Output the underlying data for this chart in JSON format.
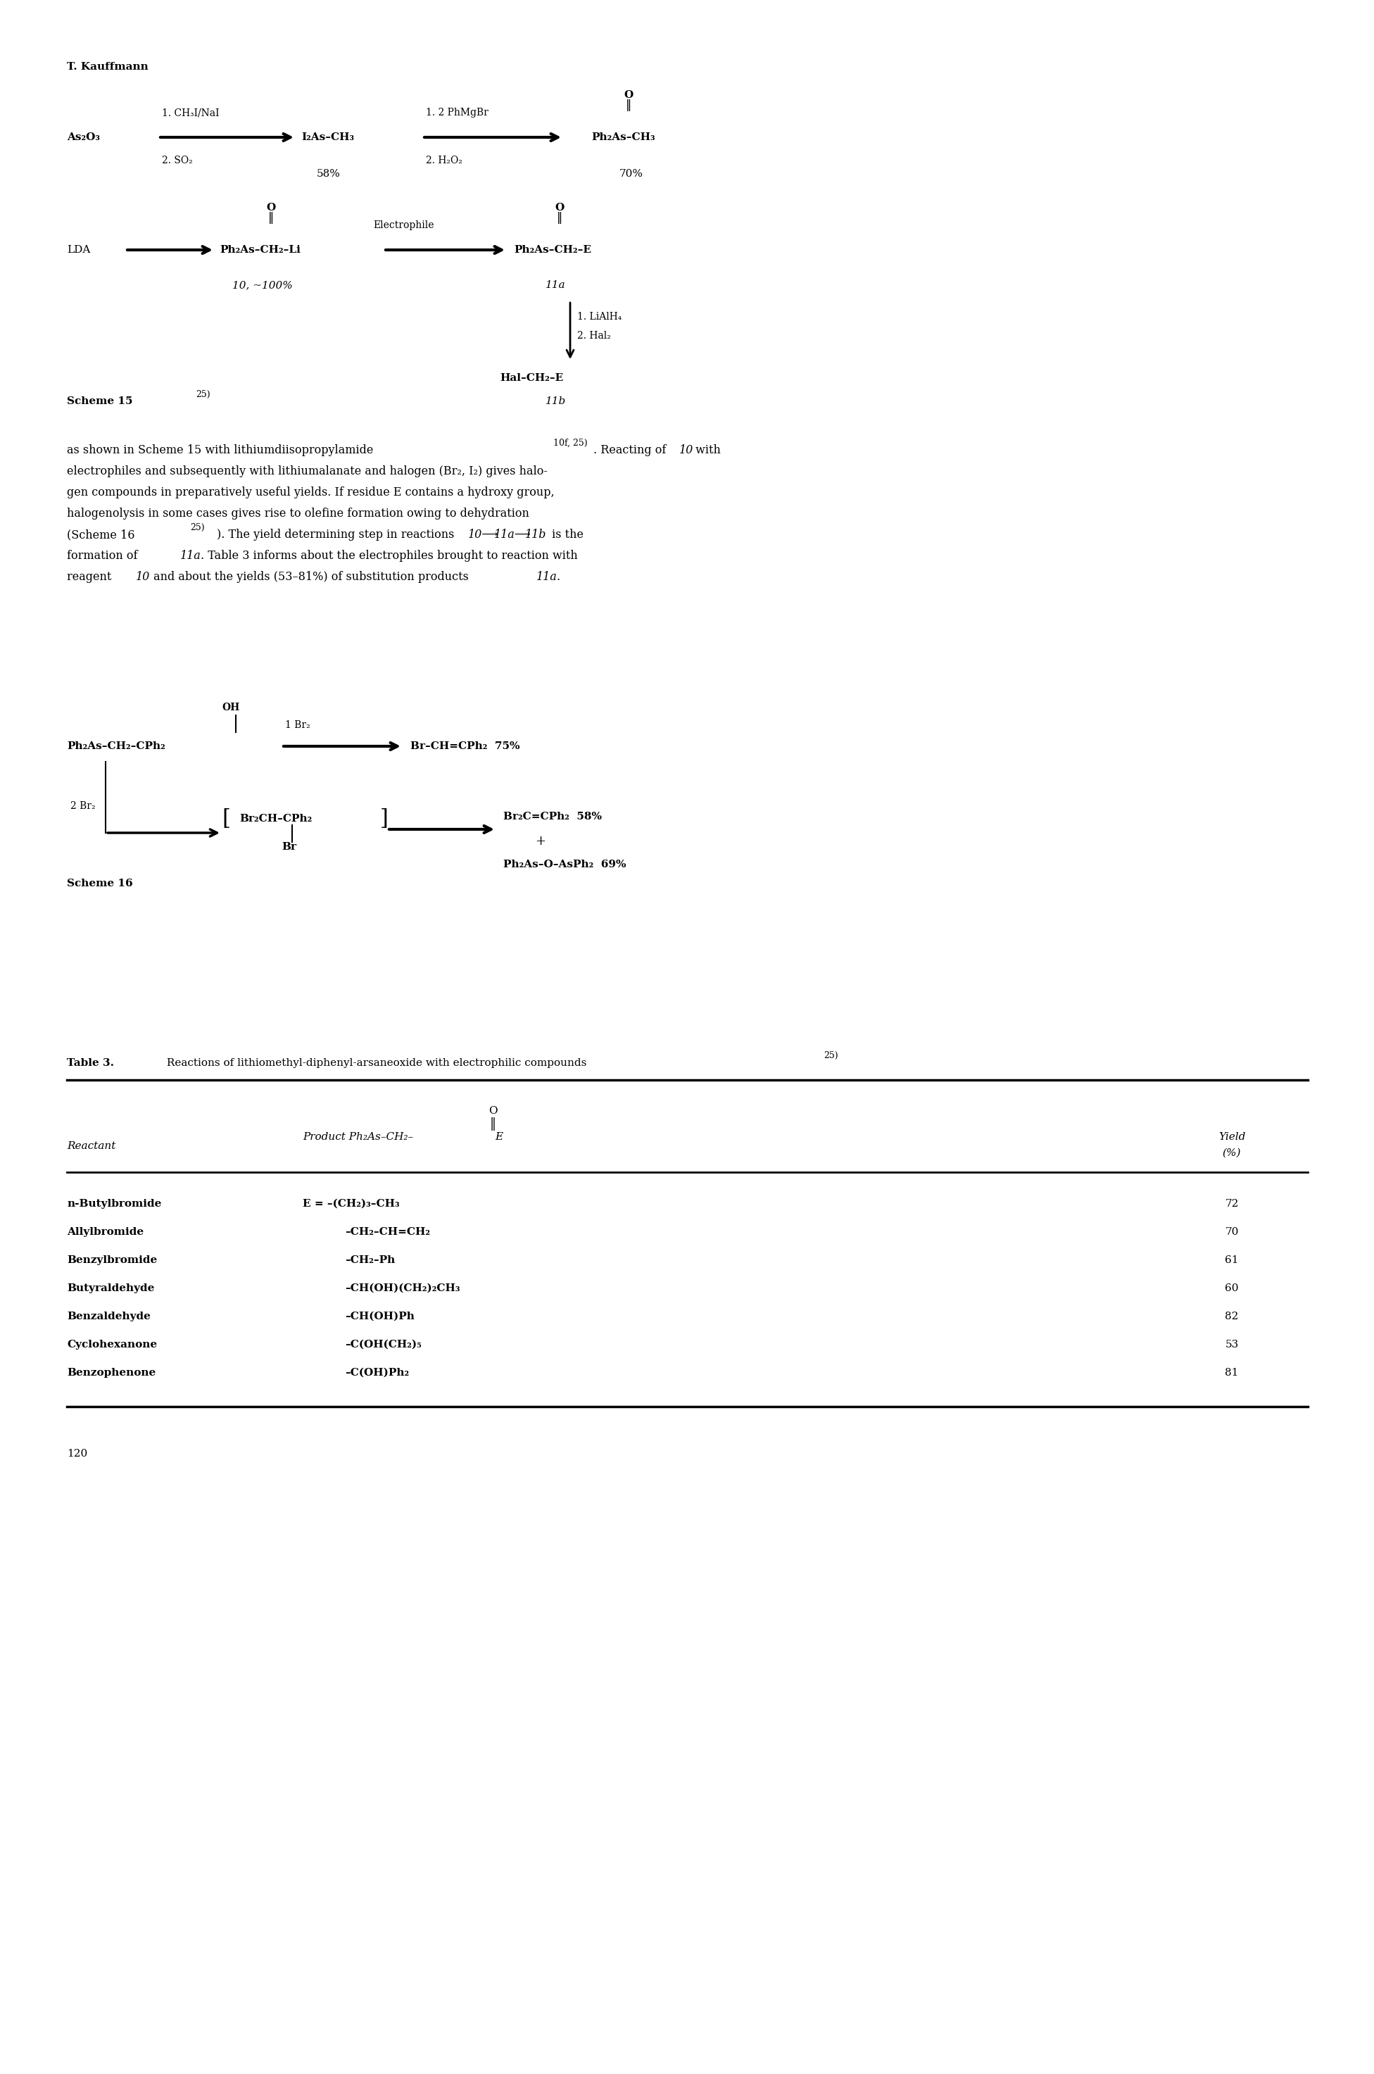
{
  "bg_color": "#ffffff",
  "page_width": 19.52,
  "page_height": 29.46,
  "author": "T. Kauffmann",
  "reactants": [
    "n-Butylbromide",
    "Allylbromide",
    "Benzylbromide",
    "Butyraldehyde",
    "Benzaldehyde",
    "Cyclohexanone",
    "Benzophenone"
  ],
  "products_row1": "E = –(CH₂)₃–CH₃",
  "products_rest": [
    "–CH₂–CH=CH₂",
    "–CH₂–Ph",
    "–CH(OH)(CH₂)₂CH₃",
    "–CH(OH)Ph",
    "–C(OH)(CH₂)₅",
    "–C(OH)Ph₂"
  ],
  "yields": [
    "72",
    "70",
    "61",
    "60",
    "82",
    "53",
    "81"
  ],
  "page_number": "120"
}
